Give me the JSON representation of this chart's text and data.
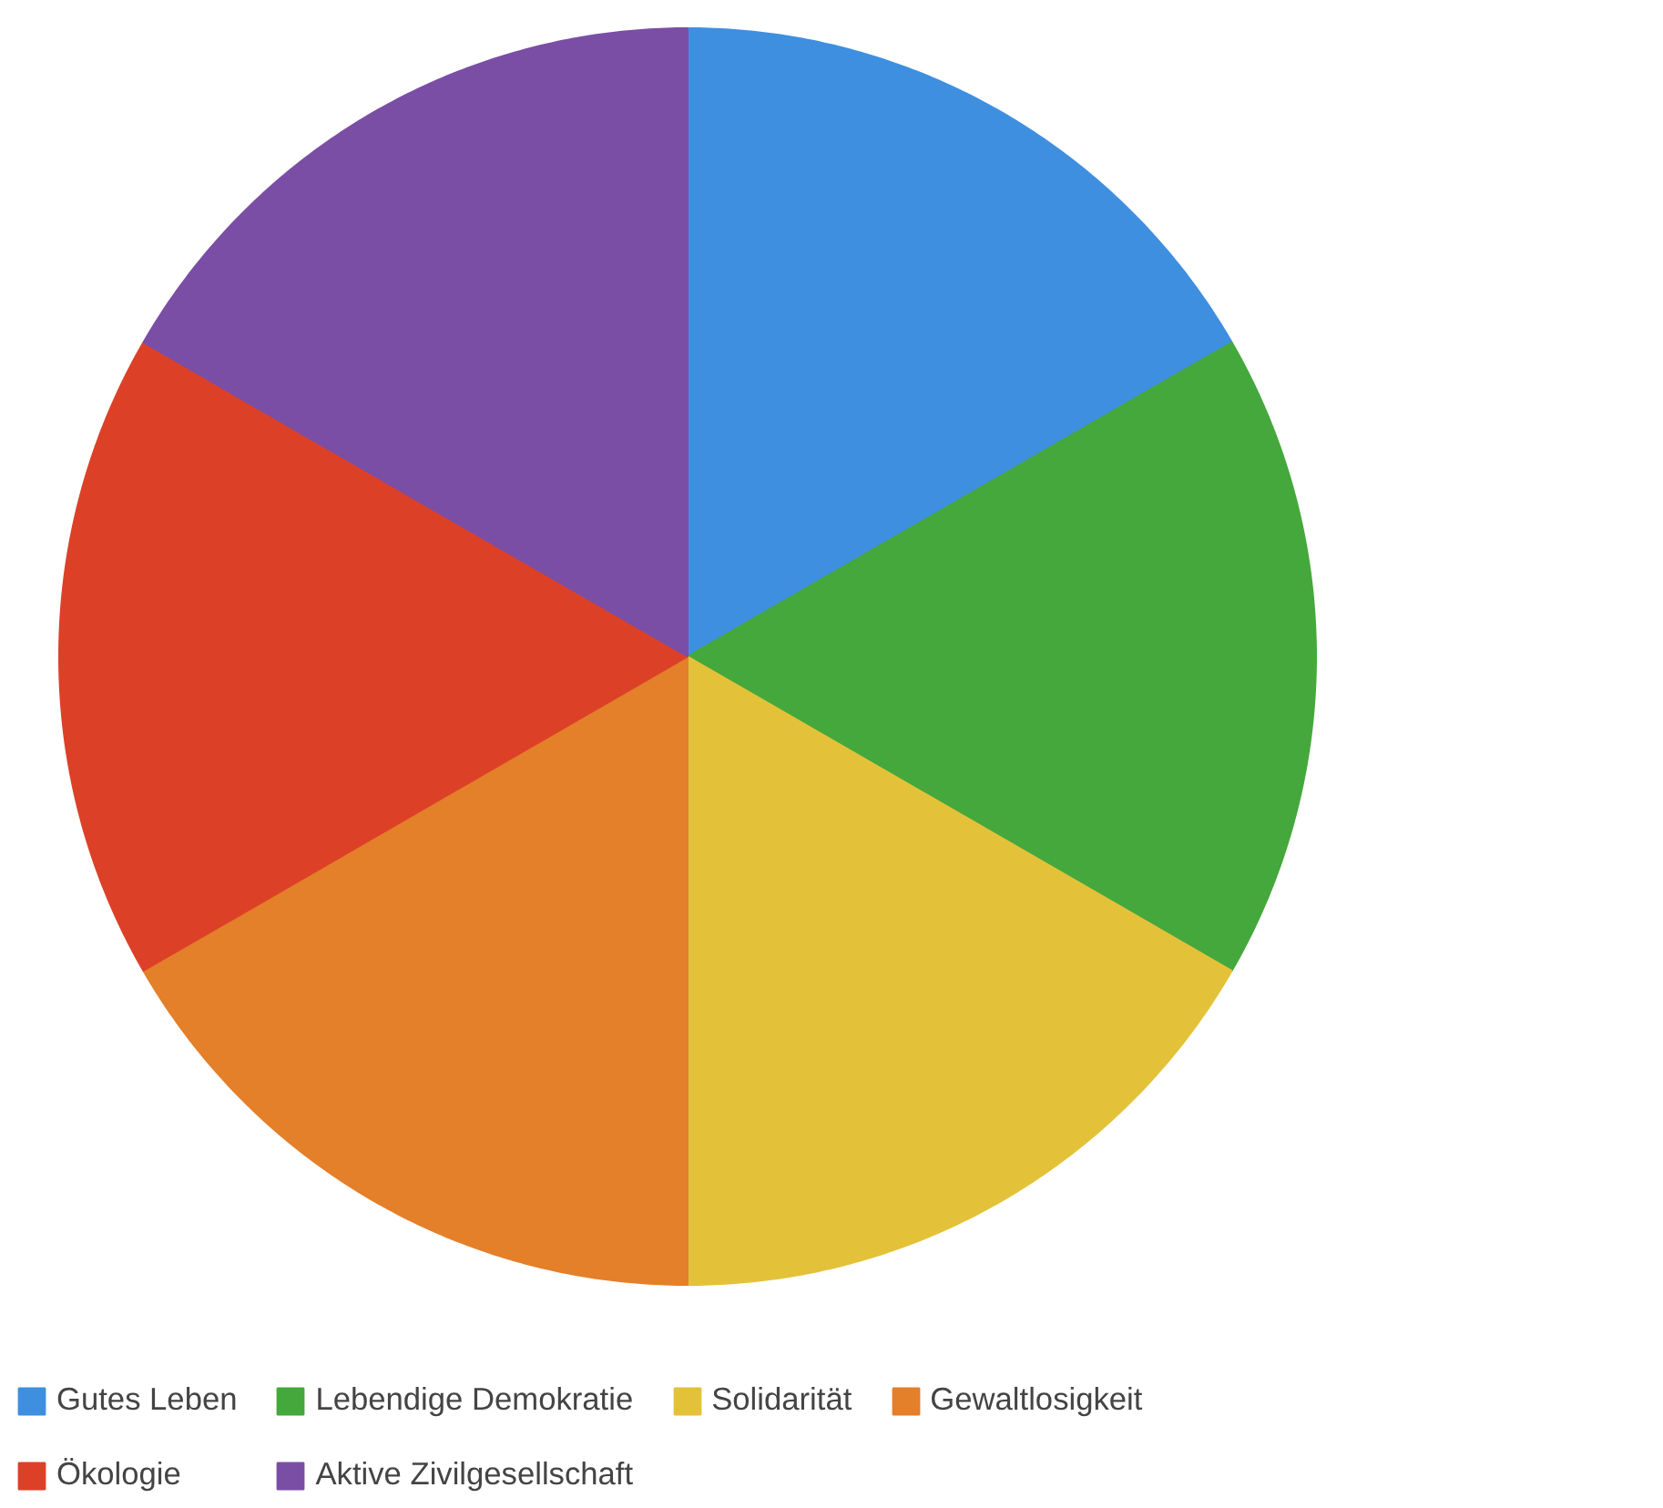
{
  "chart_data": {
    "type": "pie",
    "categories": [
      "Gutes Leben",
      "Lebendige Demokratie",
      "Solidarität",
      "Gewaltlosigkeit",
      "Ökologie",
      "Aktive Zivilgesellschaft"
    ],
    "values": [
      16.67,
      16.67,
      16.67,
      16.67,
      16.67,
      16.67
    ],
    "colors": [
      "#3f8fe0",
      "#45a83c",
      "#e3c23a",
      "#e47f2a",
      "#dc4128",
      "#7b4ea6"
    ],
    "legend": "bottom"
  }
}
